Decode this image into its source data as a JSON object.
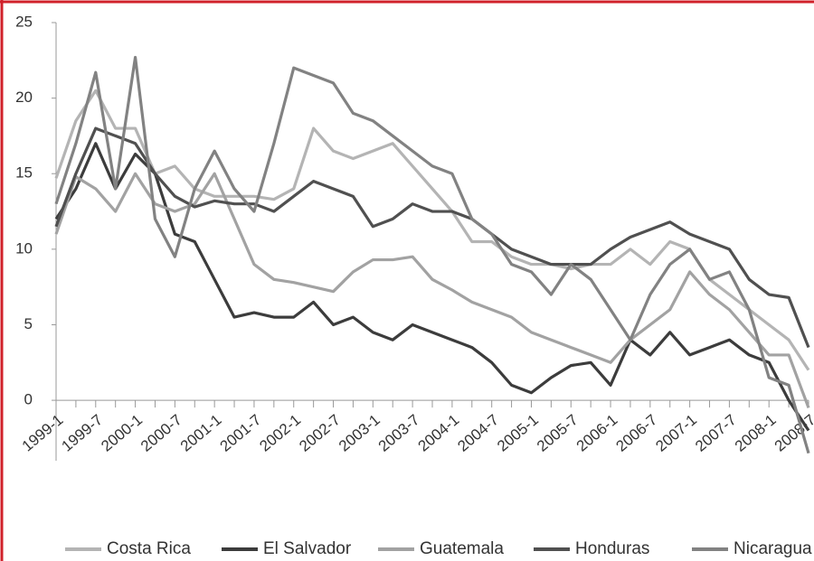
{
  "chart_data": {
    "type": "line",
    "categories": [
      "1999-1",
      null,
      "1999-7",
      null,
      "2000-1",
      null,
      "2000-7",
      null,
      "2001-1",
      null,
      "2001-7",
      null,
      "2002-1",
      null,
      "2002-7",
      null,
      "2003-1",
      null,
      "2003-7",
      null,
      "2004-1",
      null,
      "2004-7",
      null,
      "2005-1",
      null,
      "2005-7",
      null,
      "2006-1",
      null,
      "2006-7",
      null,
      "2007-1",
      null,
      "2007-7",
      null,
      "2008-1",
      null,
      "2008-7"
    ],
    "series": [
      {
        "name": "Costa Rica",
        "color": "#b4b4b4",
        "values": [
          14.7,
          18.5,
          20.5,
          18,
          18,
          15,
          15.5,
          14,
          13.5,
          13.5,
          13.5,
          13.3,
          14,
          18,
          16.5,
          16,
          16.5,
          17,
          15.5,
          14,
          12.5,
          10.5,
          10.5,
          9.5,
          9,
          9,
          8.7,
          9,
          9,
          10,
          9,
          10.5,
          10,
          8,
          7,
          6,
          5,
          4,
          2
        ]
      },
      {
        "name": "El Salvador",
        "color": "#3c3c3c",
        "values": [
          12,
          14,
          17,
          14,
          16.3,
          15,
          11,
          10.5,
          8,
          5.5,
          5.8,
          5.5,
          5.5,
          6.5,
          5,
          5.5,
          4.5,
          4,
          5,
          4.5,
          4,
          3.5,
          2.5,
          1,
          0.5,
          1.5,
          2.3,
          2.5,
          1,
          4,
          3,
          4.5,
          3,
          3.5,
          4,
          3,
          2.5,
          0,
          -2
        ]
      },
      {
        "name": "Guatemala",
        "color": "#a2a2a2",
        "values": [
          11,
          14.8,
          14,
          12.5,
          15,
          13,
          12.5,
          13,
          15,
          12,
          9,
          8,
          7.8,
          7.5,
          7.2,
          8.5,
          9.3,
          9.3,
          9.5,
          8,
          7.3,
          6.5,
          6,
          5.5,
          4.5,
          4,
          3.5,
          3,
          2.5,
          4,
          5,
          6,
          8.5,
          7,
          6,
          4.5,
          3,
          3,
          -0.5
        ]
      },
      {
        "name": "Honduras",
        "color": "#505050",
        "values": [
          11.5,
          15,
          18,
          17.5,
          17,
          15,
          13.5,
          12.8,
          13.2,
          13,
          13,
          12.5,
          13.5,
          14.5,
          14,
          13.5,
          11.5,
          12,
          13,
          12.5,
          12.5,
          12,
          11,
          10,
          9.5,
          9,
          9,
          9,
          10,
          10.8,
          11.3,
          11.8,
          11,
          10.5,
          10,
          8,
          7,
          6.8,
          3.5
        ]
      },
      {
        "name": "Nicaragua",
        "color": "#828282",
        "values": [
          13,
          17,
          21.7,
          14,
          22.7,
          12,
          9.5,
          14,
          16.5,
          14,
          12.5,
          17,
          22,
          21.5,
          21,
          19,
          18.5,
          17.5,
          16.5,
          15.5,
          15,
          12,
          11,
          9,
          8.5,
          7,
          9,
          8,
          6,
          4,
          7,
          9,
          10,
          8,
          8.5,
          6,
          1.5,
          1,
          -3.5
        ]
      }
    ],
    "ylim": [
      -4,
      25
    ],
    "yticks": [
      0,
      5,
      10,
      15,
      20,
      25
    ]
  }
}
